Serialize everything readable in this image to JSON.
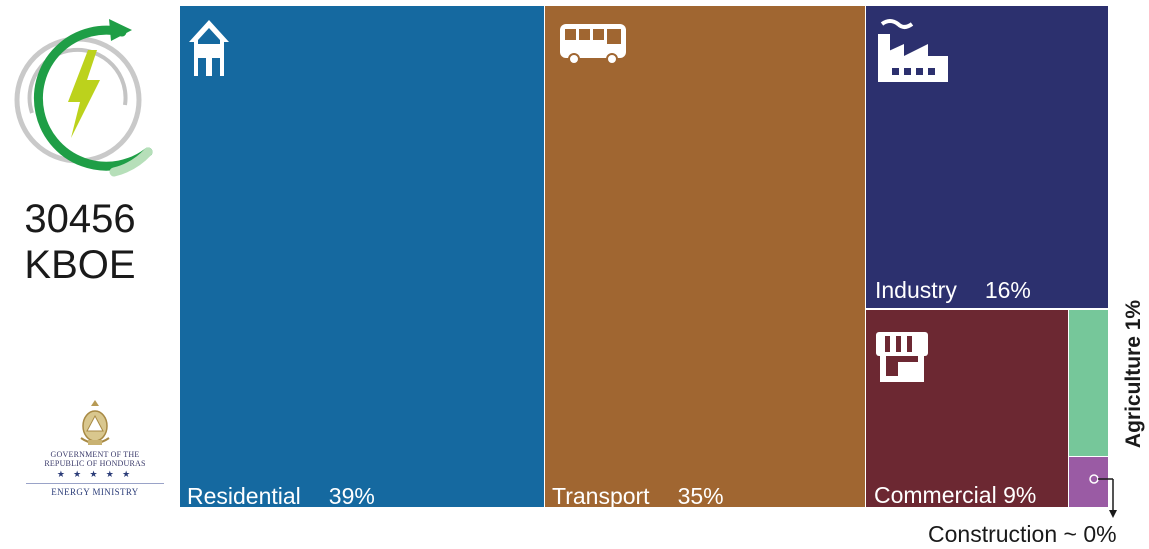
{
  "total": {
    "value": "30456",
    "unit": "KBOE"
  },
  "seal": {
    "government_text_line1": "GOVERNMENT OF THE",
    "government_text_line2": "REPUBLIC OF HONDURAS",
    "stars": "★ ★ ★ ★ ★",
    "ministry": "ENERGY MINISTRY"
  },
  "icons": {
    "logo": "energy-bolt-cycle-icon",
    "residential": "house-icon",
    "transport": "bus-icon",
    "industry": "factory-icon",
    "commercial": "storefront-icon"
  },
  "chart_data": {
    "type": "treemap",
    "unit": "%",
    "categories": [
      "Residential",
      "Transport",
      "Industry",
      "Commercial",
      "Agriculture",
      "Construction"
    ],
    "values": [
      39,
      35,
      16,
      9,
      1,
      0
    ],
    "labels": [
      "Residential",
      "Transport",
      "Industry",
      "Commercial",
      "Agriculture",
      "Construction"
    ],
    "value_labels": [
      "39%",
      "35%",
      "16%",
      "9%",
      "1%",
      "~ 0%"
    ],
    "colors": [
      "#1569a0",
      "#a06631",
      "#2c306e",
      "#6c2832",
      "#76c79a",
      "#9a5ba4"
    ],
    "annotations": {
      "agriculture": "Agriculture 1%",
      "construction": "Construction ~ 0%"
    }
  }
}
